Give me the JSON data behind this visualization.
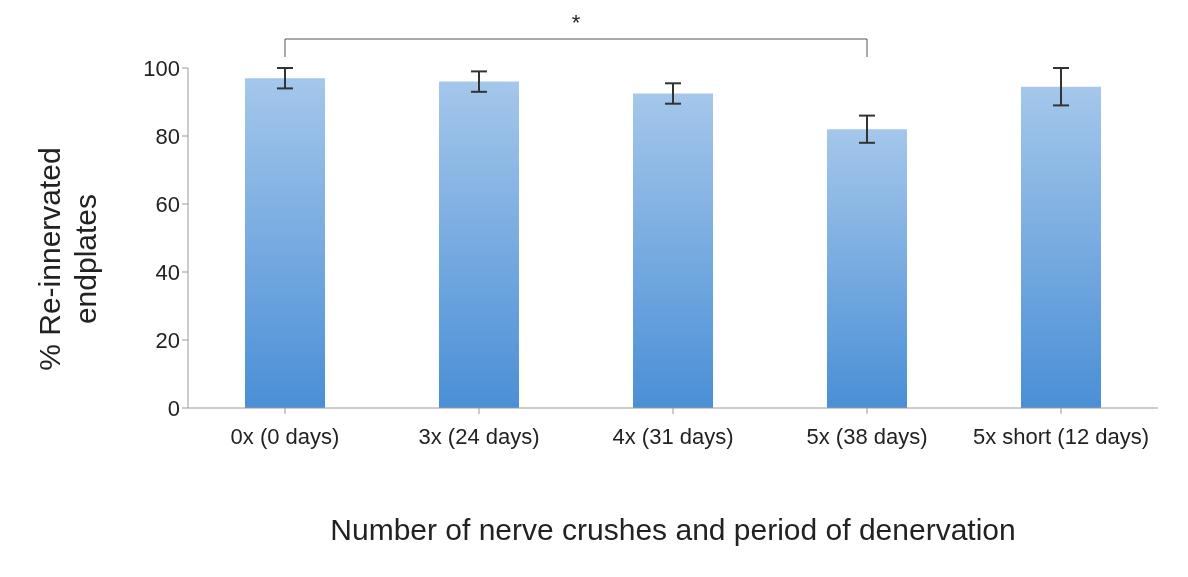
{
  "chart_data": {
    "type": "bar",
    "xlabel": "Number of nerve crushes and period of denervation",
    "ylabel": "% Re-innervated endplates",
    "categories": [
      "0x (0 days)",
      "3x (24 days)",
      "4x (31 days)",
      "5x (38 days)",
      "5x short (12 days)"
    ],
    "values": [
      97,
      96,
      92.5,
      82,
      94.5
    ],
    "errors": [
      3,
      3,
      3,
      4,
      5.5
    ],
    "color": "#4a8fd6",
    "ylim": [
      0,
      100
    ],
    "yticks": [
      0,
      20,
      40,
      60,
      80,
      100
    ],
    "grid": false,
    "legend": false,
    "annotations": [
      "*"
    ]
  }
}
